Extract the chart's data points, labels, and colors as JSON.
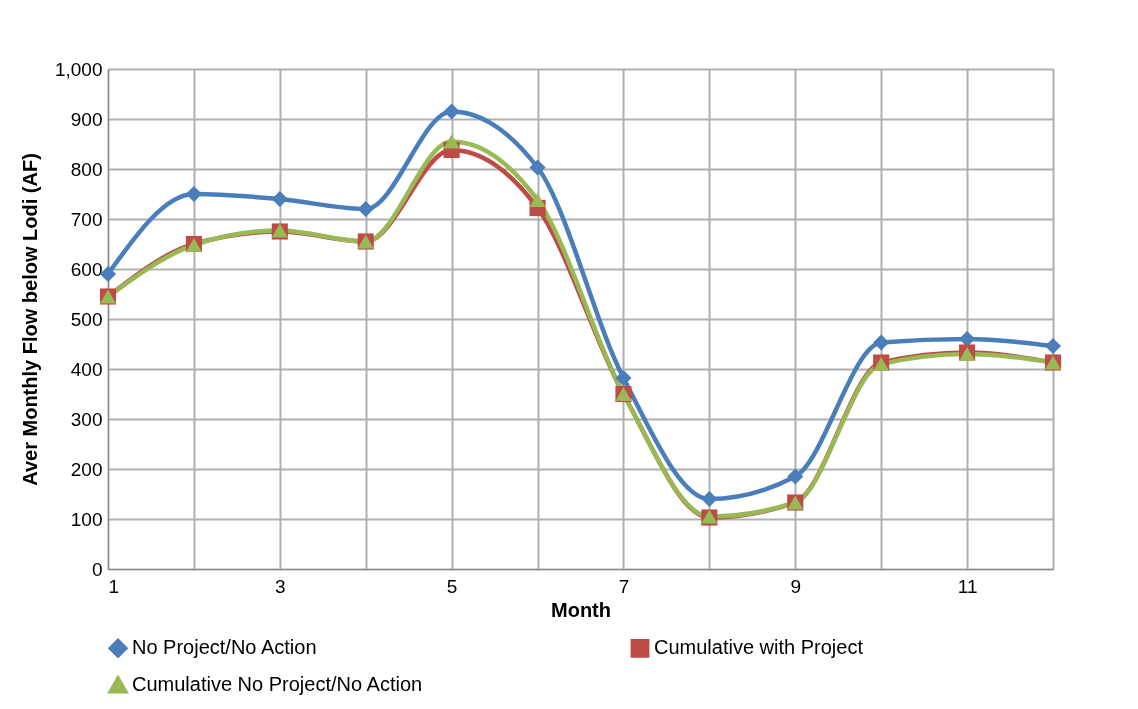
{
  "chart_data": {
    "type": "line",
    "xlabel": "Month",
    "ylabel": "Aver Monthly Flow below Lodi (AF)",
    "x": [
      1,
      2,
      3,
      4,
      5,
      6,
      7,
      8,
      9,
      10,
      11,
      12
    ],
    "xlim": [
      1,
      12
    ],
    "xticks": [
      1,
      {
        "value": 2,
        "label": null
      },
      3,
      {
        "value": 4,
        "label": null
      },
      5,
      {
        "value": 6,
        "label": null
      },
      7,
      {
        "value": 8,
        "label": null
      },
      9,
      {
        "value": 10,
        "label": null
      },
      11,
      {
        "value": 12,
        "label": null
      }
    ],
    "ylim": [
      0,
      1000
    ],
    "yticks": [
      0,
      100,
      200,
      300,
      400,
      500,
      600,
      700,
      800,
      900,
      {
        "value": 1000,
        "label": "1,000"
      }
    ],
    "grid": true,
    "legend": "bottom",
    "series": [
      {
        "name": "No Project/No Action",
        "color": "#4a7ebb",
        "marker": "diamond",
        "values": [
          590,
          750,
          740,
          720,
          915,
          803,
          382,
          140,
          185,
          453,
          460,
          446
        ]
      },
      {
        "name": "Cumulative with Project",
        "color": "#be4b48",
        "marker": "square",
        "values": [
          545,
          650,
          675,
          655,
          838,
          722,
          350,
          103,
          133,
          413,
          433,
          413
        ]
      },
      {
        "name": "Cumulative No Project/No Action",
        "color": "#98b954",
        "marker": "triangle",
        "values": [
          545,
          648,
          677,
          655,
          855,
          738,
          350,
          105,
          133,
          410,
          430,
          413
        ]
      }
    ]
  }
}
